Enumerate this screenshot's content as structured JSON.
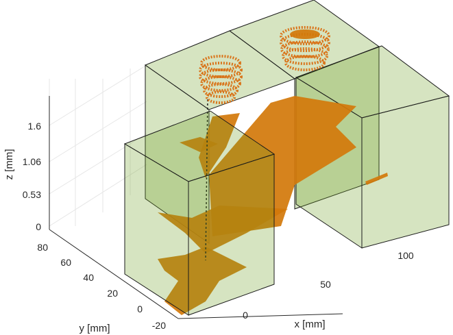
{
  "chart_data": {
    "type": "scatter3d",
    "title": "",
    "xlabel": "x [mm]",
    "ylabel": "y [mm]",
    "zlabel": "z [mm]",
    "x_ticks": [
      "0",
      "50",
      "100"
    ],
    "y_ticks": [
      "-20",
      "0",
      "20",
      "40",
      "60",
      "80"
    ],
    "z_ticks": [
      "0",
      "0.53",
      "1.06",
      "1.6"
    ],
    "grid": true,
    "colors": {
      "boxes": "#6a9e1f",
      "points": "#d2780a"
    }
  }
}
